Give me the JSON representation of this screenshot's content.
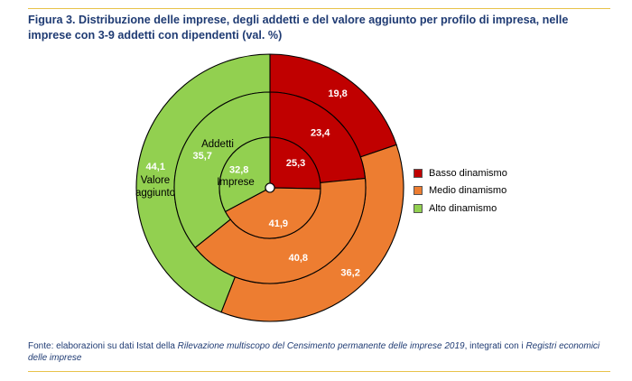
{
  "title": "Figura 3. Distribuzione delle imprese, degli addetti e del valore aggiunto per profilo di impresa, nelle imprese con 3-9 addetti con dipendenti (val. %)",
  "source": {
    "prefix": "Fonte: elaborazioni su dati Istat della ",
    "italic1": "Rilevazione multiscopo del Censimento permanente delle imprese 2019",
    "middle": ", integrati con i ",
    "italic2": "Registri economici delle imprese"
  },
  "chart_data": {
    "type": "pie",
    "subtype": "nested-donut",
    "categories": [
      "Basso dinamismo",
      "Medio dinamismo",
      "Alto dinamismo"
    ],
    "colors": [
      "#c00000",
      "#ed7d31",
      "#92d050"
    ],
    "rings": [
      {
        "name": "Imprese",
        "values": [
          25.3,
          41.9,
          32.8
        ],
        "label_lines": [
          "Imprese"
        ]
      },
      {
        "name": "Addetti",
        "values": [
          23.4,
          40.8,
          35.7
        ],
        "label_lines": [
          "Addetti"
        ]
      },
      {
        "name": "Valore aggiunto",
        "values": [
          19.8,
          36.2,
          44.1
        ],
        "label_lines": [
          "Valore",
          "aggiunto"
        ]
      }
    ],
    "legend_position": "right"
  }
}
